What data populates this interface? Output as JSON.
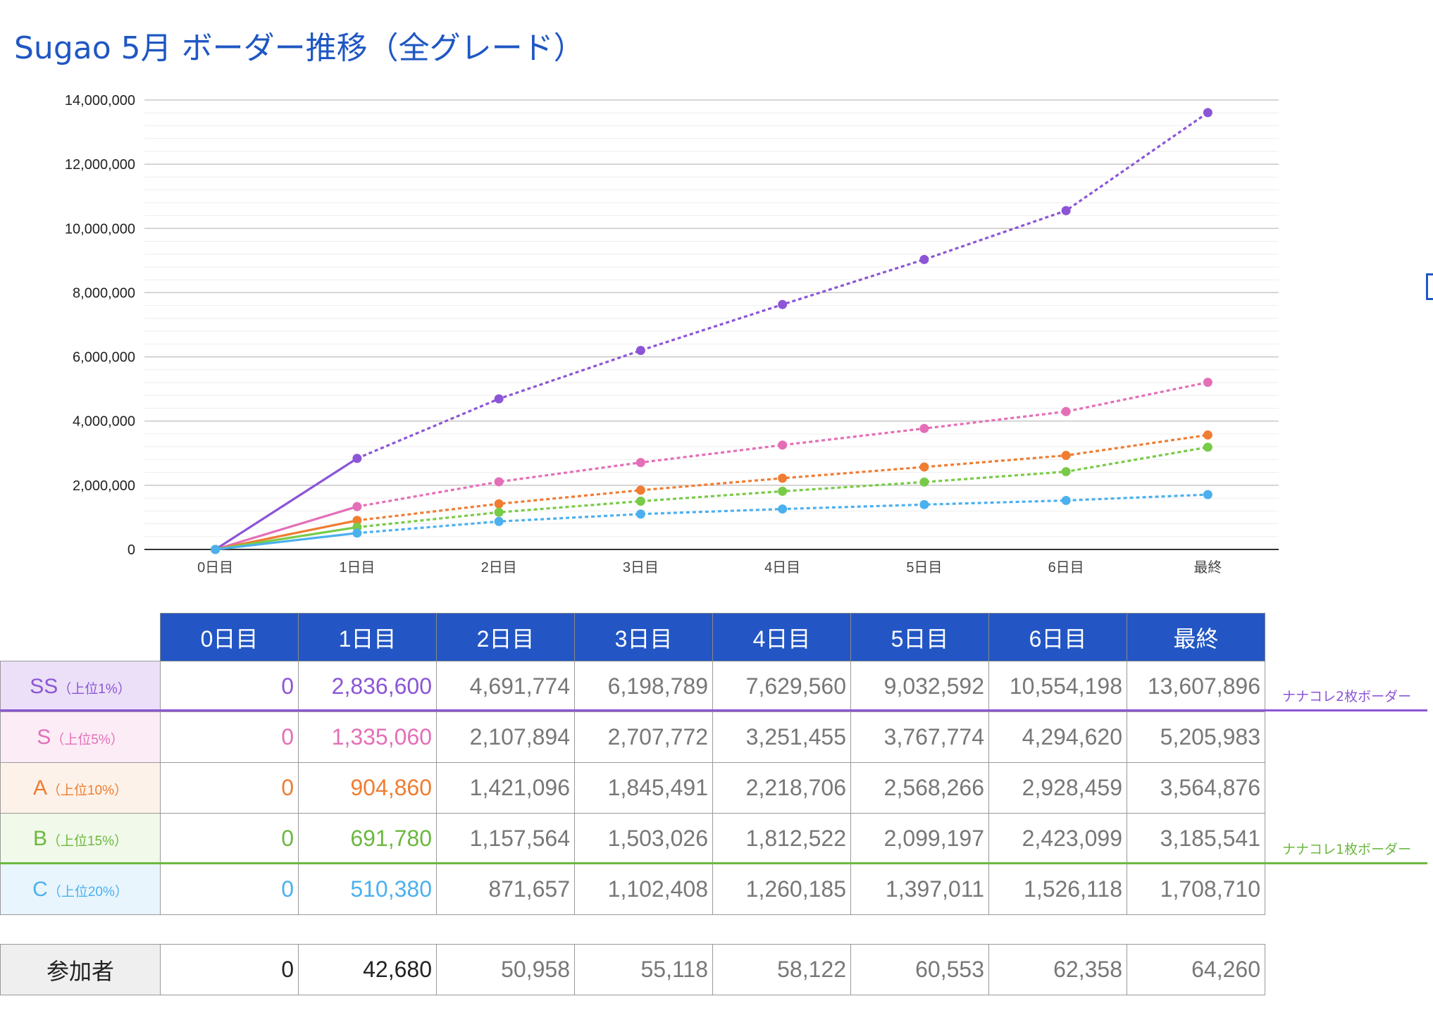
{
  "title": "Sugao 5月 ボーダー推移（全グレード）",
  "chart_data": {
    "type": "line",
    "title": "",
    "xlabel": "",
    "ylabel": "",
    "categories": [
      "0日目",
      "1日目",
      "2日目",
      "3日目",
      "4日目",
      "5日目",
      "6日目",
      "最終"
    ],
    "ylim": [
      0,
      14000000
    ],
    "yticks": [
      0,
      2000000,
      4000000,
      6000000,
      8000000,
      10000000,
      12000000,
      14000000
    ],
    "ytick_labels": [
      "0",
      "2,000,000",
      "4,000,000",
      "6,000,000",
      "8,000,000",
      "10,000,000",
      "12,000,000",
      "14,000,000"
    ],
    "grid": true,
    "legend": "none",
    "series": [
      {
        "values": [
          0,
          2836600,
          4691774,
          6198789,
          7629560,
          9032592,
          10554198,
          13607896
        ],
        "color": "#8c55d6"
      },
      {
        "values": [
          0,
          1335060,
          2107894,
          2707772,
          3251455,
          3767774,
          4294620,
          5205983
        ],
        "color": "#e46fb7"
      },
      {
        "values": [
          0,
          904860,
          1421096,
          1845491,
          2218706,
          2568266,
          2928459,
          3564876
        ],
        "color": "#ef7d32"
      },
      {
        "values": [
          0,
          691780,
          1157564,
          1503026,
          1812522,
          2099197,
          2423099,
          3185541
        ],
        "color": "#78cb47"
      },
      {
        "values": [
          0,
          510380,
          871657,
          1102408,
          1260185,
          1397011,
          1526118,
          1708710
        ],
        "color": "#4bb0ee"
      }
    ]
  },
  "table": {
    "headers": [
      "0日目",
      "1日目",
      "2日目",
      "3日目",
      "4日目",
      "5日目",
      "6日目",
      "最終"
    ],
    "rows": [
      {
        "grade": "SS",
        "pct": "（上位1%）",
        "color": "#8c55d6",
        "bg": "#ebe0f7",
        "cells": [
          "0",
          "2,836,600",
          "4,691,774",
          "6,198,789",
          "7,629,560",
          "9,032,592",
          "10,554,198",
          "13,607,896"
        ]
      },
      {
        "grade": "S",
        "pct": "（上位5%）",
        "color": "#e46fb7",
        "bg": "#fcecf6",
        "cells": [
          "0",
          "1,335,060",
          "2,107,894",
          "2,707,772",
          "3,251,455",
          "3,767,774",
          "4,294,620",
          "5,205,983"
        ]
      },
      {
        "grade": "A",
        "pct": "（上位10%）",
        "color": "#ef7d32",
        "bg": "#fdf2e9",
        "cells": [
          "0",
          "904,860",
          "1,421,096",
          "1,845,491",
          "2,218,706",
          "2,568,266",
          "2,928,459",
          "3,564,876"
        ]
      },
      {
        "grade": "B",
        "pct": "（上位15%）",
        "color": "#6cb83f",
        "bg": "#f1f9ea",
        "cells": [
          "0",
          "691,780",
          "1,157,564",
          "1,503,026",
          "1,812,522",
          "2,099,197",
          "2,423,099",
          "3,185,541"
        ]
      },
      {
        "grade": "C",
        "pct": "（上位20%）",
        "color": "#4bb0ee",
        "bg": "#e8f5fd",
        "cells": [
          "0",
          "510,380",
          "871,657",
          "1,102,408",
          "1,260,185",
          "1,397,011",
          "1,526,118",
          "1,708,710"
        ]
      }
    ],
    "participants": {
      "label": "参加者",
      "cells": [
        "0",
        "42,680",
        "50,958",
        "55,118",
        "58,122",
        "60,553",
        "62,358",
        "64,260"
      ]
    }
  },
  "notes": {
    "two_card": {
      "text": "ナナコレ2枚ボーダー",
      "color": "#8c55d6"
    },
    "one_card": {
      "text": "ナナコレ1枚ボーダー",
      "color": "#6cb83f"
    }
  },
  "colors": {
    "header_bg": "#2356c4",
    "title": "#1f57c3"
  }
}
